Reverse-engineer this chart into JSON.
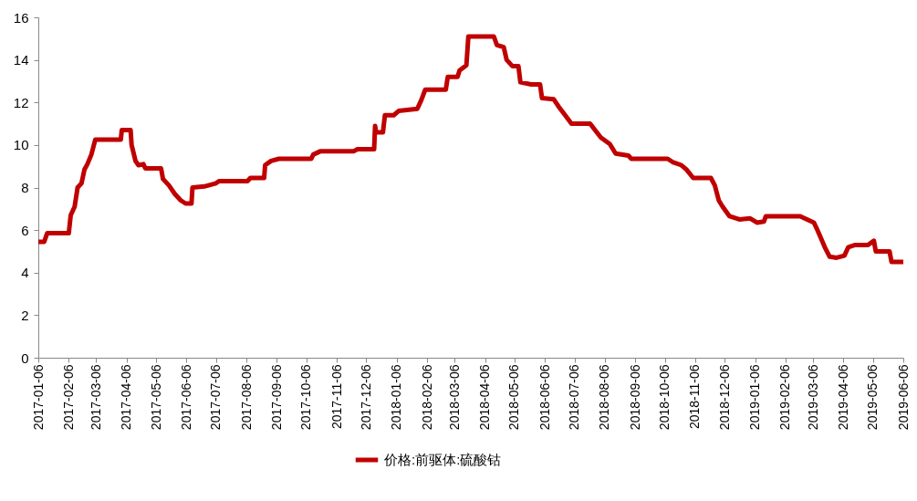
{
  "chart_data": {
    "type": "line",
    "legend": "bottom",
    "grid": false,
    "marker": "none",
    "line_style": "solid",
    "xlim": [
      "2017-01-06",
      "2019-06-06"
    ],
    "xticks": [
      "2017-01-06",
      "2017-02-06",
      "2017-03-06",
      "2017-04-06",
      "2017-05-06",
      "2017-06-06",
      "2017-07-06",
      "2017-08-06",
      "2017-09-06",
      "2017-10-06",
      "2017-11-06",
      "2017-12-06",
      "2018-01-06",
      "2018-02-06",
      "2018-03-06",
      "2018-04-06",
      "2018-05-06",
      "2018-06-06",
      "2018-07-06",
      "2018-08-06",
      "2018-09-06",
      "2018-10-06",
      "2018-11-06",
      "2018-12-06",
      "2019-01-06",
      "2019-02-06",
      "2019-03-06",
      "2019-04-06",
      "2019-05-06",
      "2019-06-06"
    ],
    "ylim": [
      0,
      16
    ],
    "yticks": [
      0,
      2,
      4,
      6,
      8,
      10,
      12,
      14,
      16
    ],
    "series": [
      {
        "name": "价格:前驱体:硫酸钴",
        "color": "#c00000",
        "x": [
          "2017-01-06",
          "2017-01-12",
          "2017-01-15",
          "2017-02-06",
          "2017-02-08",
          "2017-02-12",
          "2017-02-15",
          "2017-02-19",
          "2017-02-22",
          "2017-02-25",
          "2017-03-01",
          "2017-03-05",
          "2017-03-31",
          "2017-04-01",
          "2017-04-10",
          "2017-04-11",
          "2017-04-15",
          "2017-04-18",
          "2017-04-23",
          "2017-04-25",
          "2017-05-11",
          "2017-05-13",
          "2017-05-19",
          "2017-05-25",
          "2017-05-31",
          "2017-06-05",
          "2017-06-11",
          "2017-06-12",
          "2017-06-24",
          "2017-07-06",
          "2017-07-09",
          "2017-08-07",
          "2017-08-10",
          "2017-08-24",
          "2017-08-25",
          "2017-08-31",
          "2017-09-08",
          "2017-10-11",
          "2017-10-13",
          "2017-10-20",
          "2017-11-23",
          "2017-11-27",
          "2017-12-14",
          "2017-12-15",
          "2017-12-16",
          "2017-12-23",
          "2017-12-25",
          "2018-01-03",
          "2018-01-08",
          "2018-01-27",
          "2018-01-31",
          "2018-02-04",
          "2018-02-25",
          "2018-02-27",
          "2018-03-09",
          "2018-03-11",
          "2018-03-18",
          "2018-03-20",
          "2018-04-15",
          "2018-04-18",
          "2018-04-25",
          "2018-04-28",
          "2018-05-04",
          "2018-05-10",
          "2018-05-12",
          "2018-05-23",
          "2018-06-01",
          "2018-06-03",
          "2018-06-15",
          "2018-06-20",
          "2018-06-25",
          "2018-07-03",
          "2018-07-22",
          "2018-07-27",
          "2018-08-02",
          "2018-08-11",
          "2018-08-17",
          "2018-08-30",
          "2018-09-02",
          "2018-10-09",
          "2018-10-14",
          "2018-10-23",
          "2018-10-28",
          "2018-11-04",
          "2018-11-22",
          "2018-11-26",
          "2018-11-30",
          "2018-12-04",
          "2018-12-11",
          "2018-12-21",
          "2019-01-01",
          "2019-01-08",
          "2019-01-15",
          "2019-01-17",
          "2019-02-21",
          "2019-02-28",
          "2019-03-07",
          "2019-03-11",
          "2019-03-18",
          "2019-03-23",
          "2019-03-30",
          "2019-04-07",
          "2019-04-11",
          "2019-04-18",
          "2019-05-01",
          "2019-05-07",
          "2019-05-09",
          "2019-05-23",
          "2019-05-25",
          "2019-06-06"
        ],
        "values": [
          5.45,
          5.45,
          5.85,
          5.85,
          6.7,
          7.1,
          8.0,
          8.2,
          8.85,
          9.1,
          9.55,
          10.25,
          10.25,
          10.7,
          10.7,
          10.0,
          9.25,
          9.05,
          9.1,
          8.9,
          8.9,
          8.4,
          8.1,
          7.7,
          7.4,
          7.25,
          7.25,
          8.0,
          8.05,
          8.2,
          8.3,
          8.3,
          8.45,
          8.45,
          9.05,
          9.25,
          9.35,
          9.35,
          9.55,
          9.7,
          9.7,
          9.8,
          9.8,
          10.9,
          10.6,
          10.6,
          11.4,
          11.4,
          11.6,
          11.7,
          12.1,
          12.6,
          12.6,
          13.2,
          13.2,
          13.5,
          13.75,
          15.1,
          15.1,
          14.7,
          14.6,
          14.0,
          13.7,
          13.7,
          12.95,
          12.85,
          12.85,
          12.2,
          12.15,
          11.8,
          11.5,
          11.0,
          11.0,
          10.7,
          10.35,
          10.05,
          9.6,
          9.5,
          9.35,
          9.35,
          9.2,
          9.05,
          8.85,
          8.45,
          8.45,
          8.1,
          7.4,
          7.1,
          6.65,
          6.5,
          6.55,
          6.35,
          6.4,
          6.65,
          6.65,
          6.5,
          6.35,
          5.95,
          5.2,
          4.75,
          4.7,
          4.8,
          5.2,
          5.3,
          5.3,
          5.5,
          5.0,
          5.0,
          4.5,
          4.5
        ]
      }
    ]
  }
}
